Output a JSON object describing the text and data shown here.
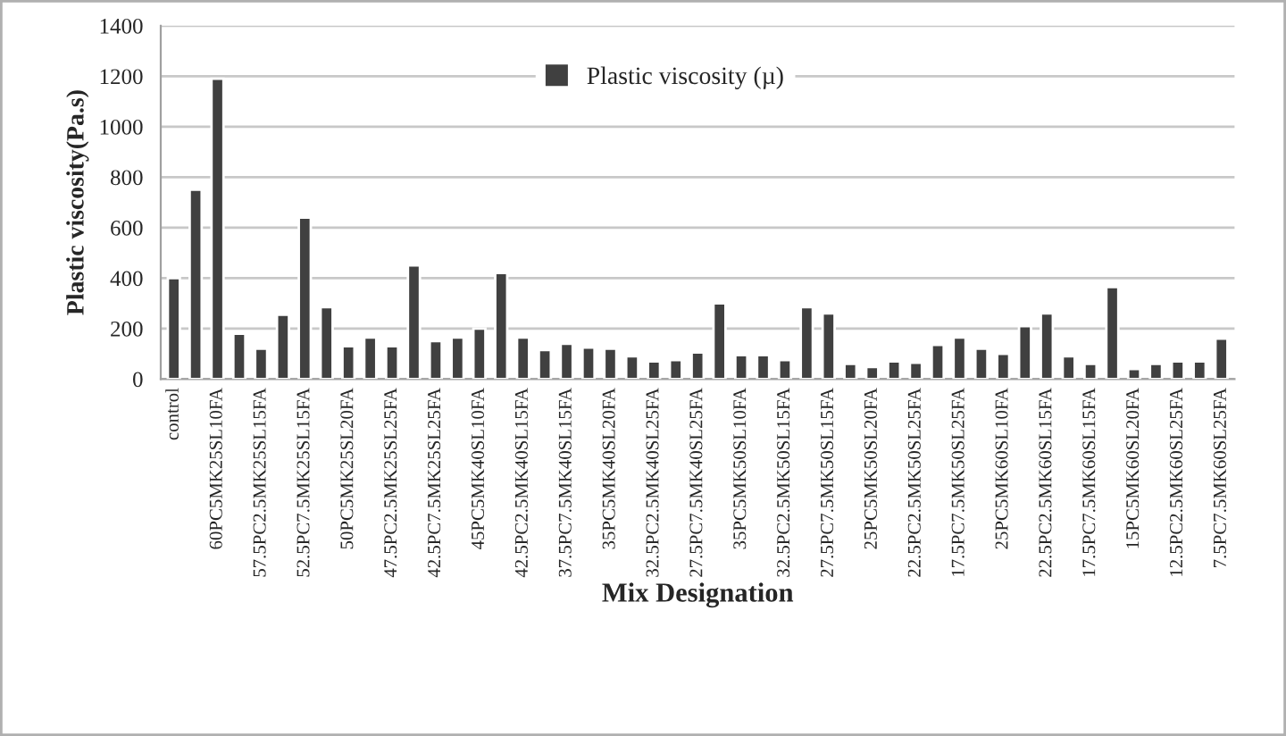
{
  "chart_data": {
    "type": "bar",
    "xlabel": "Mix Designation",
    "ylabel": "Plastic viscosity(Pa.s)",
    "categories": [
      "control",
      null,
      "60PC5MK25SL10FA",
      null,
      "57.5PC2.5MK25SL15FA",
      null,
      "52.5PC7.5MK25SL15FA",
      null,
      "50PC5MK25SL20FA",
      null,
      "47.5PC2.5MK25SL25FA",
      null,
      "42.5PC7.5MK25SL25FA",
      null,
      "45PC5MK40SL10FA",
      null,
      "42.5PC2.5MK40SL15FA",
      null,
      "37.5PC7.5MK40SL15FA",
      null,
      "35PC5MK40SL20FA",
      null,
      "32.5PC2.5MK40SL25FA",
      null,
      "27.5PC7.5MK40SL25FA",
      null,
      "35PC5MK50SL10FA",
      null,
      "32.5PC2.5MK50SL15FA",
      null,
      "27.5PC7.5MK50SL15FA",
      null,
      "25PC5MK50SL20FA",
      null,
      "22.5PC2.5MK50SL25FA",
      null,
      "17.5PC7.5MK50SL25FA",
      null,
      "25PC5MK60SL10FA",
      null,
      "22.5PC2.5MK60SL15FA",
      null,
      "17.5PC7.5MK60SL15FA",
      null,
      "15PC5MK60SL20FA",
      null,
      "12.5PC2.5MK60SL25FA",
      null,
      "7.5PC7.5MK60SL25FA"
    ],
    "series": [
      {
        "name": "Plastic viscosity (µ)",
        "color": "#404040",
        "values": [
          400,
          750,
          1190,
          180,
          120,
          255,
          640,
          285,
          130,
          165,
          130,
          450,
          150,
          165,
          200,
          420,
          165,
          115,
          140,
          125,
          120,
          90,
          70,
          75,
          105,
          300,
          95,
          95,
          75,
          285,
          260,
          60,
          48,
          70,
          65,
          135,
          165,
          120,
          100,
          210,
          260,
          90,
          60,
          365,
          40,
          60,
          70,
          70,
          160
        ]
      }
    ],
    "ylim": [
      0,
      1400
    ],
    "yticks": [
      0,
      200,
      400,
      600,
      800,
      1000,
      1200,
      1400
    ],
    "grid": "y",
    "legend": "top"
  }
}
